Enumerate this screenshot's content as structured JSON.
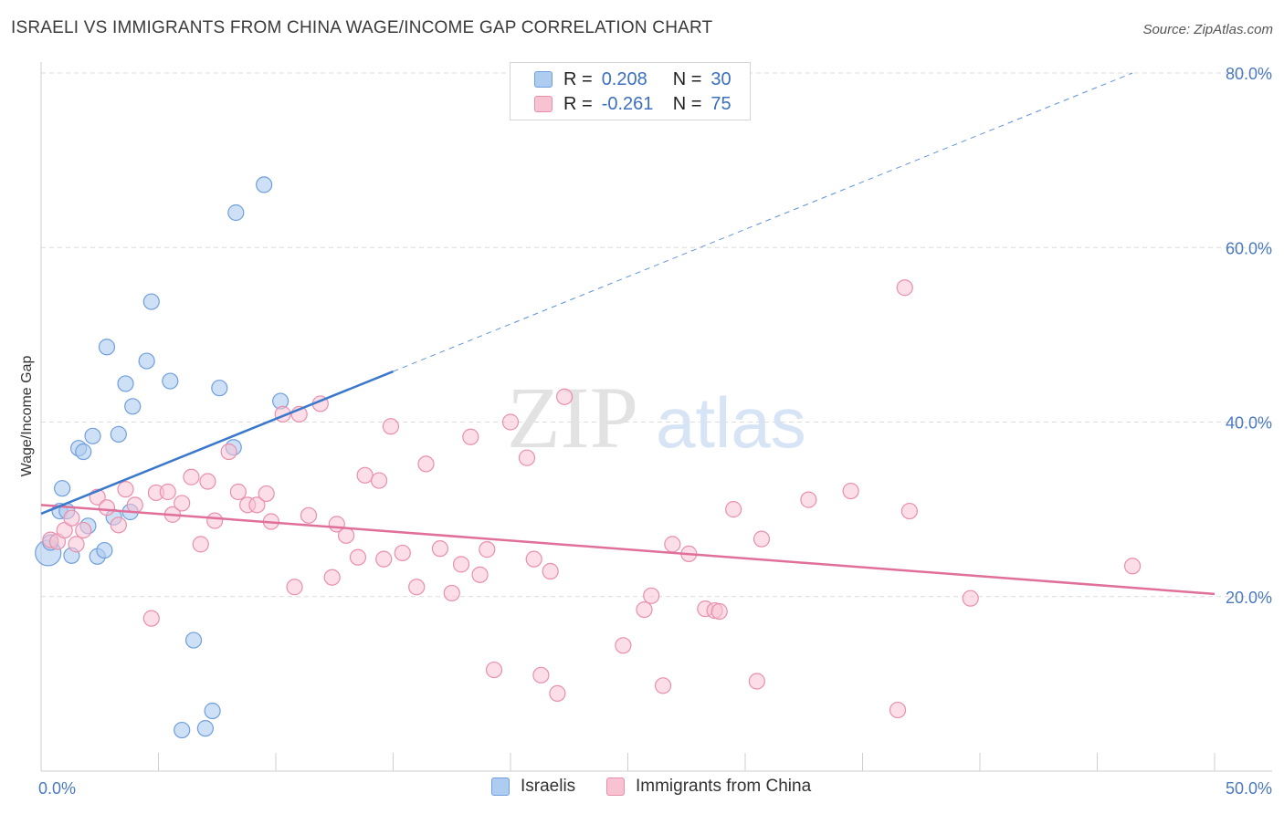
{
  "title": "ISRAELI VS IMMIGRANTS FROM CHINA WAGE/INCOME GAP CORRELATION CHART",
  "source": "Source: ZipAtlas.com",
  "watermark": {
    "zip": "ZIP",
    "atlas": "atlas"
  },
  "legend": {
    "israelis": {
      "r_label": "R =",
      "r_value": "0.208",
      "n_label": "N =",
      "n_value": "30"
    },
    "china": {
      "r_label": "R =",
      "r_value": "-0.261",
      "n_label": "N =",
      "n_value": "75"
    }
  },
  "bottom_legend": {
    "israelis": "Israelis",
    "china": "Immigrants from China"
  },
  "colors": {
    "israelis_fill": "#aecbf0",
    "israelis_stroke": "#6f9fdc",
    "israelis_line": "#3a78cc",
    "china_fill": "#f7c3d3",
    "china_stroke": "#e98fac",
    "china_line": "#e0709a",
    "tick_text": "#4a79c2",
    "grid": "#dcdcdc"
  },
  "chart_data": {
    "type": "scatter",
    "ylabel": "Wage/Income Gap",
    "xlim": [
      0,
      50
    ],
    "ylim": [
      0,
      80
    ],
    "x_tick_labels": [
      "0.0%",
      "50.0%"
    ],
    "y_ticks": [
      20,
      40,
      60,
      80
    ],
    "y_tick_labels": [
      "20.0%",
      "40.0%",
      "60.0%",
      "80.0%"
    ],
    "grid": true,
    "series": [
      {
        "name": "Israelis",
        "points": [
          [
            0.3,
            25.0
          ],
          [
            0.4,
            26.2
          ],
          [
            0.8,
            29.8
          ],
          [
            0.9,
            32.4
          ],
          [
            1.1,
            29.8
          ],
          [
            1.3,
            24.7
          ],
          [
            1.6,
            37.0
          ],
          [
            1.8,
            36.6
          ],
          [
            2.0,
            28.1
          ],
          [
            2.2,
            38.4
          ],
          [
            2.4,
            24.6
          ],
          [
            2.7,
            25.3
          ],
          [
            2.8,
            48.6
          ],
          [
            3.1,
            29.1
          ],
          [
            3.3,
            38.6
          ],
          [
            3.6,
            44.4
          ],
          [
            3.8,
            29.7
          ],
          [
            3.9,
            41.8
          ],
          [
            4.5,
            47.0
          ],
          [
            4.7,
            53.8
          ],
          [
            5.5,
            44.7
          ],
          [
            6.0,
            4.7
          ],
          [
            6.5,
            15.0
          ],
          [
            7.0,
            4.9
          ],
          [
            7.3,
            6.9
          ],
          [
            7.6,
            43.9
          ],
          [
            8.2,
            37.1
          ],
          [
            8.3,
            64.0
          ],
          [
            9.5,
            67.2
          ],
          [
            10.2,
            42.4
          ]
        ],
        "trend": {
          "x": [
            0,
            15
          ],
          "y": [
            29.5,
            45.8
          ]
        },
        "trend_extended": {
          "x": [
            15,
            46.5
          ],
          "y": [
            45.8,
            80.0
          ]
        }
      },
      {
        "name": "Immigrants from China",
        "points": [
          [
            0.4,
            26.5
          ],
          [
            0.7,
            26.3
          ],
          [
            1.0,
            27.6
          ],
          [
            1.3,
            29.0
          ],
          [
            1.5,
            26.0
          ],
          [
            1.8,
            27.6
          ],
          [
            2.4,
            31.4
          ],
          [
            2.8,
            30.2
          ],
          [
            3.3,
            28.2
          ],
          [
            3.6,
            32.3
          ],
          [
            4.0,
            30.5
          ],
          [
            4.7,
            17.5
          ],
          [
            4.9,
            31.9
          ],
          [
            5.4,
            32.0
          ],
          [
            5.6,
            29.4
          ],
          [
            6.0,
            30.7
          ],
          [
            6.4,
            33.7
          ],
          [
            6.8,
            26.0
          ],
          [
            7.1,
            33.2
          ],
          [
            7.4,
            28.7
          ],
          [
            8.0,
            36.6
          ],
          [
            8.4,
            32.0
          ],
          [
            8.8,
            30.5
          ],
          [
            9.2,
            30.5
          ],
          [
            9.6,
            31.8
          ],
          [
            9.8,
            28.6
          ],
          [
            10.3,
            40.9
          ],
          [
            10.8,
            21.1
          ],
          [
            11.0,
            40.9
          ],
          [
            11.4,
            29.3
          ],
          [
            11.9,
            42.1
          ],
          [
            12.4,
            22.2
          ],
          [
            12.6,
            28.3
          ],
          [
            13.0,
            27.0
          ],
          [
            13.5,
            24.5
          ],
          [
            13.8,
            33.9
          ],
          [
            14.4,
            33.3
          ],
          [
            14.6,
            24.3
          ],
          [
            14.9,
            39.5
          ],
          [
            15.4,
            25.0
          ],
          [
            16.0,
            21.1
          ],
          [
            16.4,
            35.2
          ],
          [
            17.0,
            25.5
          ],
          [
            17.5,
            20.4
          ],
          [
            17.9,
            23.7
          ],
          [
            18.3,
            38.3
          ],
          [
            18.7,
            22.5
          ],
          [
            19.0,
            25.4
          ],
          [
            19.3,
            11.6
          ],
          [
            20.0,
            40.0
          ],
          [
            20.7,
            35.9
          ],
          [
            21.0,
            24.3
          ],
          [
            21.3,
            11.0
          ],
          [
            21.7,
            22.9
          ],
          [
            22.0,
            8.9
          ],
          [
            22.3,
            42.9
          ],
          [
            24.8,
            14.4
          ],
          [
            25.7,
            18.5
          ],
          [
            26.0,
            20.1
          ],
          [
            26.5,
            9.8
          ],
          [
            26.9,
            26.0
          ],
          [
            27.6,
            24.9
          ],
          [
            28.3,
            18.6
          ],
          [
            28.7,
            18.4
          ],
          [
            28.9,
            18.3
          ],
          [
            29.5,
            30.0
          ],
          [
            30.5,
            10.3
          ],
          [
            30.7,
            26.6
          ],
          [
            32.7,
            31.1
          ],
          [
            34.5,
            32.1
          ],
          [
            36.5,
            7.0
          ],
          [
            36.8,
            55.4
          ],
          [
            37.0,
            29.8
          ],
          [
            39.6,
            19.8
          ],
          [
            46.5,
            23.5
          ]
        ],
        "trend": {
          "x": [
            0,
            50
          ],
          "y": [
            30.5,
            20.3
          ]
        }
      }
    ]
  }
}
